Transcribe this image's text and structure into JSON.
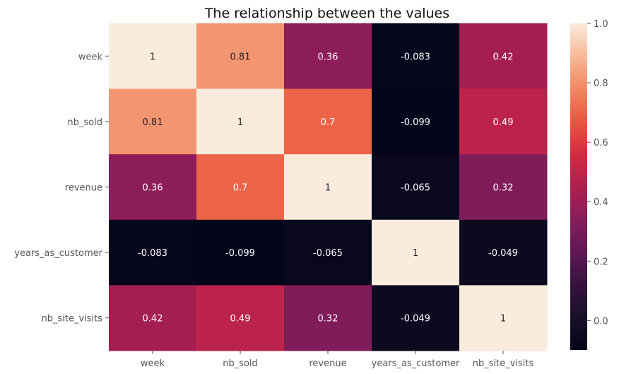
{
  "chart_data": {
    "type": "heatmap",
    "title": "The relationship between the values",
    "xlabel": "",
    "ylabel": "",
    "row_labels": [
      "week",
      "nb_sold",
      "revenue",
      "years_as_customer",
      "nb_site_visits"
    ],
    "col_labels": [
      "week",
      "nb_sold",
      "revenue",
      "years_as_customer",
      "nb_site_visits"
    ],
    "values": [
      [
        1,
        0.81,
        0.36,
        -0.083,
        0.42
      ],
      [
        0.81,
        1,
        0.7,
        -0.099,
        0.49
      ],
      [
        0.36,
        0.7,
        1,
        -0.065,
        0.32
      ],
      [
        -0.083,
        -0.099,
        -0.065,
        1,
        -0.049
      ],
      [
        0.42,
        0.49,
        0.32,
        -0.049,
        1
      ]
    ],
    "annotations": [
      [
        "1",
        "0.81",
        "0.36",
        "-0.083",
        "0.42"
      ],
      [
        "0.81",
        "1",
        "0.7",
        "-0.099",
        "0.49"
      ],
      [
        "0.36",
        "0.7",
        "1",
        "-0.065",
        "0.32"
      ],
      [
        "-0.083",
        "-0.099",
        "-0.065",
        "1",
        "-0.049"
      ],
      [
        "0.42",
        "0.49",
        "0.32",
        "-0.049",
        "1"
      ]
    ],
    "colormap": "rocket",
    "vmin": -0.099,
    "vmax": 1,
    "colorbar": {
      "ticks": [
        0.0,
        0.2,
        0.4,
        0.6,
        0.8,
        1.0
      ],
      "tick_labels": [
        "0.0",
        "0.2",
        "0.4",
        "0.6",
        "0.8",
        "1.0"
      ]
    },
    "grid": false,
    "legend": "colorbar-right"
  }
}
